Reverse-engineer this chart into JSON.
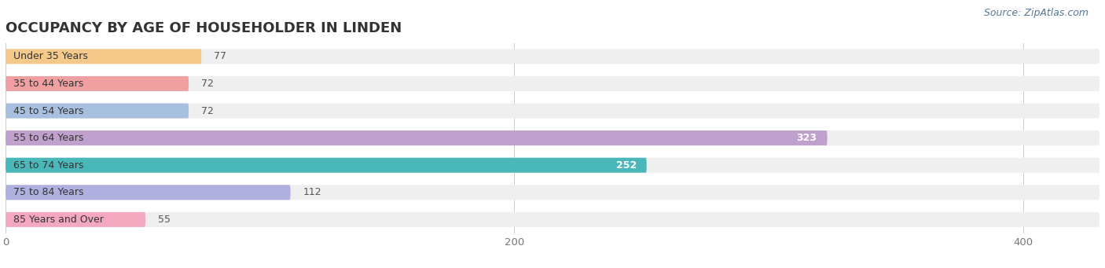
{
  "title": "OCCUPANCY BY AGE OF HOUSEHOLDER IN LINDEN",
  "source": "Source: ZipAtlas.com",
  "categories": [
    "Under 35 Years",
    "35 to 44 Years",
    "45 to 54 Years",
    "55 to 64 Years",
    "65 to 74 Years",
    "75 to 84 Years",
    "85 Years and Over"
  ],
  "values": [
    77,
    72,
    72,
    323,
    252,
    112,
    55
  ],
  "bar_colors": [
    "#f5c98a",
    "#f0a0a0",
    "#a8c0e0",
    "#c0a0cc",
    "#4ab8b8",
    "#b0b0e0",
    "#f4a8c0"
  ],
  "bar_bg_color": "#efefef",
  "xlim": [
    0,
    430
  ],
  "xticks": [
    0,
    200,
    400
  ],
  "background_color": "#ffffff",
  "title_fontsize": 13,
  "bar_height": 0.55,
  "label_fontsize": 9,
  "value_fontsize": 9,
  "source_fontsize": 9
}
